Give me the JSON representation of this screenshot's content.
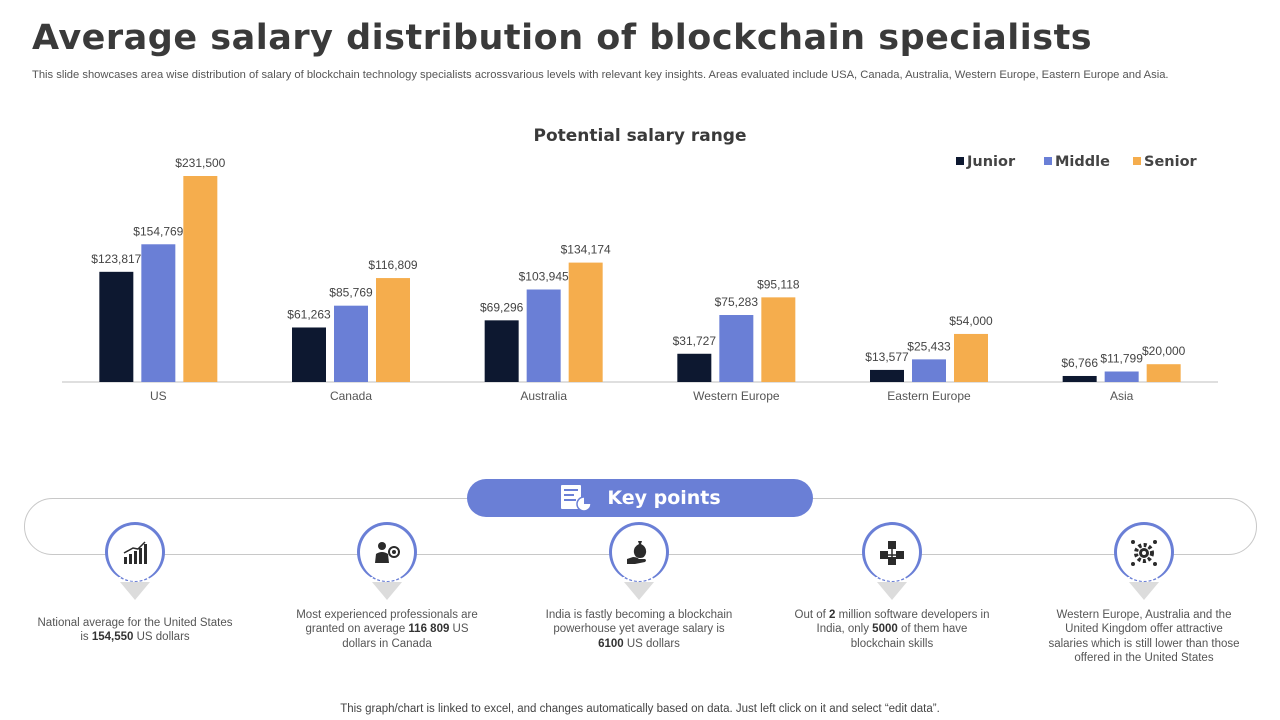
{
  "header": {
    "title": "Average salary distribution of blockchain specialists",
    "subtitle": "This slide showcases area wise distribution of salary of blockchain technology specialists acrossvarious levels with relevant key insights. Areas evaluated include USA, Canada, Australia, Western Europe, Eastern Europe and Asia."
  },
  "chart_data": {
    "type": "bar",
    "title": "Potential salary range",
    "categories": [
      "US",
      "Canada",
      "Australia",
      "Western Europe",
      "Eastern Europe",
      "Asia"
    ],
    "series": [
      {
        "name": "Junior",
        "color": "#0d1830",
        "values": [
          123817,
          61263,
          69296,
          31727,
          13577,
          6766
        ],
        "labels": [
          "$123,817",
          "$61,263",
          "$69,296",
          "$31,727",
          "$13,577",
          "$6,766"
        ]
      },
      {
        "name": "Middle",
        "color": "#6a7fd6",
        "values": [
          154769,
          85769,
          103945,
          75283,
          25433,
          11799
        ],
        "labels": [
          "$154,769",
          "$85,769",
          "$103,945",
          "$75,283",
          "$25,433",
          "$11,799"
        ]
      },
      {
        "name": "Senior",
        "color": "#f5ad4d",
        "values": [
          231500,
          116809,
          134174,
          95118,
          54000,
          20000
        ],
        "labels": [
          "$231,500",
          "$116,809",
          "$134,174",
          "$95,118",
          "$54,000",
          "$20,000"
        ]
      }
    ],
    "ylim": [
      0,
      240000
    ],
    "grid": false,
    "legend": "top-right",
    "xlabel": "",
    "ylabel": ""
  },
  "key_points": {
    "title": "Key points",
    "header_icon": "chart-document-icon",
    "items": [
      {
        "icon": "bar-growth-icon",
        "pre": "National average for the United States is ",
        "bold": "154,550",
        "post": " US dollars"
      },
      {
        "icon": "presenter-icon",
        "pre": "Most experienced professionals are granted on average ",
        "bold": "116 809",
        "post": " US dollars in Canada"
      },
      {
        "icon": "money-hand-icon",
        "pre": "India is fastly becoming a blockchain powerhouse yet average salary is ",
        "bold": "6100",
        "post": " US dollars"
      },
      {
        "icon": "blockchain-network-icon",
        "pre": "Out of ",
        "bold": "2",
        "mid": " million software developers in India, only ",
        "bold2": "5000",
        "post": " of them have blockchain skills"
      },
      {
        "icon": "gear-network-icon",
        "pre": "Western Europe, Australia and the United Kingdom offer attractive salaries which is still lower than those offered in the United States"
      }
    ]
  },
  "footer": {
    "note": "This graph/chart is linked to excel,  and changes automatically based on data. Just left click on it and select “edit data”."
  }
}
